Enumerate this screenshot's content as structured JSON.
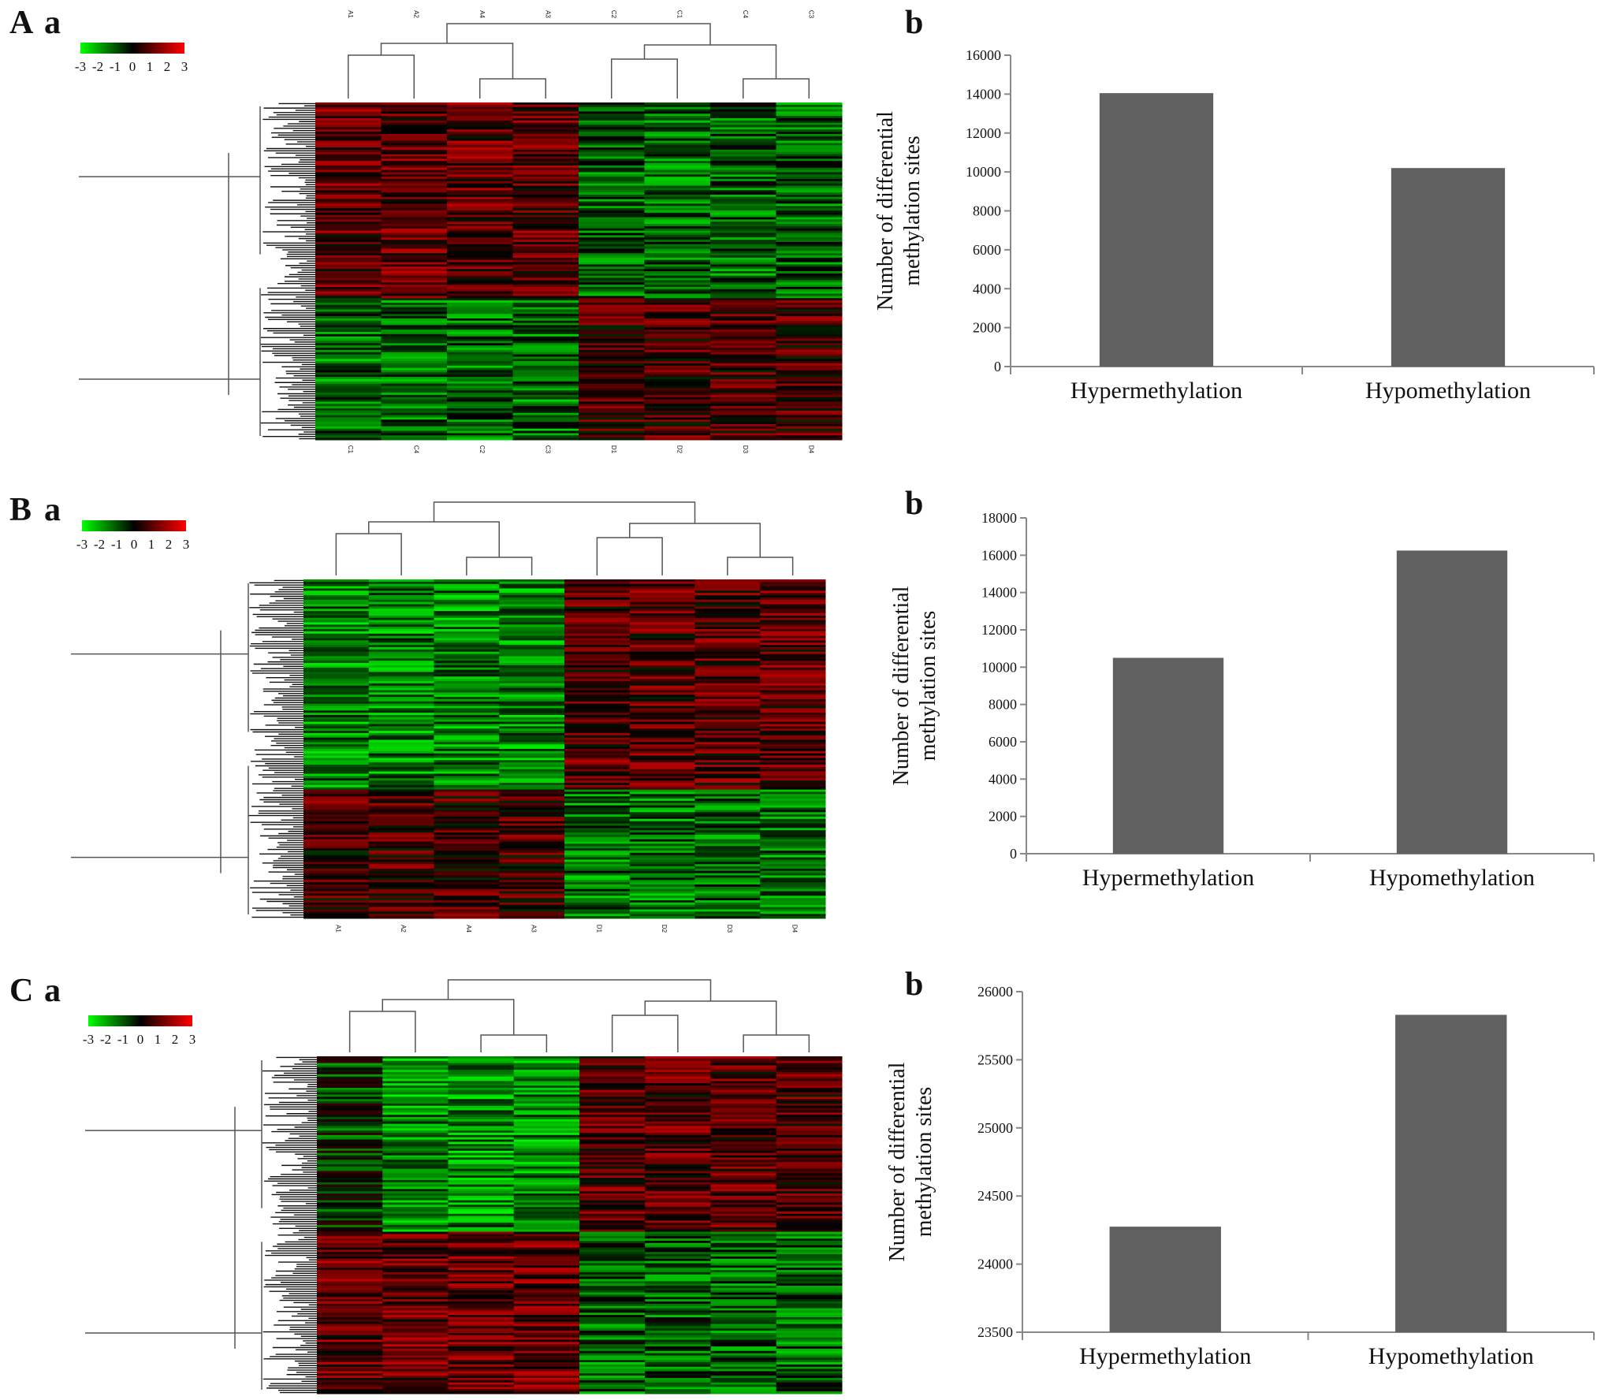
{
  "figure": {
    "panels": [
      {
        "letter": "A",
        "sub_a": "a",
        "sub_b": "b"
      },
      {
        "letter": "B",
        "sub_a": "a",
        "sub_b": "b"
      },
      {
        "letter": "C",
        "sub_a": "a",
        "sub_b": "b"
      }
    ]
  },
  "colors": {
    "bar": "#606060",
    "heat_low": "#00ff00",
    "heat_mid": "#000000",
    "heat_high": "#ff0000",
    "axis": "#888888",
    "dendrogram": "#555555"
  },
  "chart_data": [
    {
      "type": "heatmap",
      "panel": "A a",
      "colorscale_ticks": [
        "-3",
        "-2",
        "-1",
        "0",
        "1",
        "2",
        "3"
      ],
      "column_labels_top": [
        "A1",
        "A2",
        "A4",
        "A3",
        "C2",
        "C1",
        "C4",
        "C3"
      ],
      "column_labels_bottom": [
        "C1",
        "C4",
        "C2",
        "C3",
        "D1",
        "D2",
        "D3",
        "D4"
      ],
      "columns": 8,
      "rows": 150
    },
    {
      "type": "bar",
      "panel": "A b",
      "categories": [
        "Hypermethylation",
        "Hypomethylation"
      ],
      "values": [
        14050,
        10200
      ],
      "ylabel": "Number of differential methylation sites",
      "ylim": [
        0,
        16000
      ],
      "yticks": [
        "0",
        "2000",
        "4000",
        "6000",
        "8000",
        "10000",
        "12000",
        "14000",
        "16000"
      ]
    },
    {
      "type": "heatmap",
      "panel": "B a",
      "colorscale_ticks": [
        "-3",
        "-2",
        "-1",
        "0",
        "1",
        "2",
        "3"
      ],
      "column_labels_bottom": [
        "A1",
        "A2",
        "A4",
        "A3",
        "D1",
        "D2",
        "D3",
        "D4"
      ],
      "columns": 8,
      "rows": 150
    },
    {
      "type": "bar",
      "panel": "B b",
      "categories": [
        "Hypermethylation",
        "Hypomethylation"
      ],
      "values": [
        10500,
        16250
      ],
      "ylabel": "Number of differential methylation sites",
      "ylim": [
        0,
        18000
      ],
      "yticks": [
        "0",
        "2000",
        "4000",
        "6000",
        "8000",
        "10000",
        "12000",
        "14000",
        "16000",
        "18000"
      ]
    },
    {
      "type": "heatmap",
      "panel": "C a",
      "colorscale_ticks": [
        "-3",
        "-2",
        "-1",
        "0",
        "1",
        "2",
        "3"
      ],
      "columns": 8,
      "rows": 150
    },
    {
      "type": "bar",
      "panel": "C b",
      "categories": [
        "Hypermethylation",
        "Hypomethylation"
      ],
      "values": [
        24275,
        25830
      ],
      "ylabel": "Number of differential methylation sites",
      "ylim": [
        23500,
        26000
      ],
      "yticks": [
        "23500",
        "24000",
        "24500",
        "25000",
        "25500",
        "26000"
      ]
    }
  ]
}
